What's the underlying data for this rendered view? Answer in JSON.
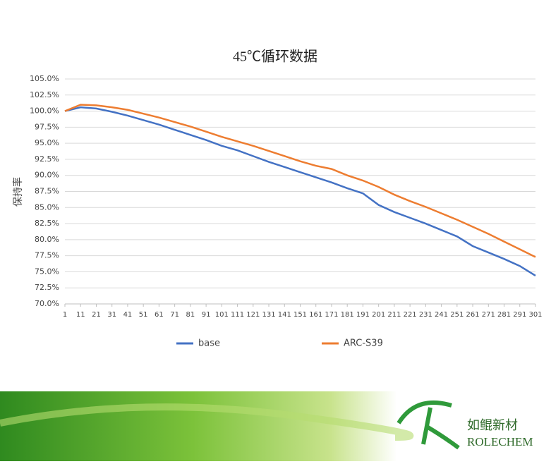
{
  "chart_data": {
    "type": "line",
    "title": "45℃循环数据",
    "y_label": "保持率",
    "x": [
      1,
      11,
      21,
      31,
      41,
      51,
      61,
      71,
      81,
      91,
      101,
      111,
      121,
      131,
      141,
      151,
      161,
      171,
      181,
      191,
      201,
      211,
      221,
      231,
      241,
      251,
      261,
      271,
      281,
      291,
      301
    ],
    "series": [
      {
        "name": "base",
        "color": "#4472c4",
        "values": [
          100.0,
          100.6,
          100.4,
          99.9,
          99.3,
          98.6,
          97.9,
          97.1,
          96.3,
          95.5,
          94.6,
          93.9,
          93.0,
          92.1,
          91.3,
          90.5,
          89.7,
          88.9,
          88.0,
          87.2,
          85.4,
          84.3,
          83.4,
          82.5,
          81.5,
          80.5,
          79.0,
          78.0,
          77.0,
          75.9,
          74.4
        ]
      },
      {
        "name": "ARC-S39",
        "color": "#ed7d31",
        "values": [
          100.0,
          101.0,
          100.9,
          100.6,
          100.2,
          99.6,
          99.0,
          98.3,
          97.6,
          96.8,
          96.0,
          95.3,
          94.6,
          93.8,
          93.0,
          92.2,
          91.5,
          91.0,
          90.0,
          89.2,
          88.2,
          87.0,
          86.0,
          85.1,
          84.1,
          83.1,
          82.0,
          80.9,
          79.7,
          78.5,
          77.3
        ]
      }
    ],
    "xlim": [
      1,
      301
    ],
    "xticks": [
      1,
      11,
      21,
      31,
      41,
      51,
      61,
      71,
      81,
      91,
      101,
      111,
      121,
      131,
      141,
      151,
      161,
      171,
      181,
      191,
      201,
      211,
      221,
      231,
      241,
      251,
      261,
      271,
      281,
      291,
      301
    ],
    "ylim": [
      70,
      105
    ],
    "yticks": [
      {
        "value": 70,
        "label": "70.0%"
      },
      {
        "value": 72.5,
        "label": "72.5%"
      },
      {
        "value": 75,
        "label": "75.0%"
      },
      {
        "value": 77.5,
        "label": "77.5%"
      },
      {
        "value": 80,
        "label": "80.0%"
      },
      {
        "value": 82.5,
        "label": "82.5%"
      },
      {
        "value": 85,
        "label": "85.0%"
      },
      {
        "value": 87.5,
        "label": "87.5%"
      },
      {
        "value": 90,
        "label": "90.0%"
      },
      {
        "value": 92.5,
        "label": "92.5%"
      },
      {
        "value": 95,
        "label": "95.0%"
      },
      {
        "value": 97.5,
        "label": "97.5%"
      },
      {
        "value": 100,
        "label": "100.0%"
      },
      {
        "value": 102.5,
        "label": "102.5%"
      },
      {
        "value": 105,
        "label": "105.0%"
      }
    ],
    "grid": true,
    "legend": "bottom"
  },
  "branding": {
    "name": "如鲲新材",
    "latin": "ROLECHEM"
  }
}
